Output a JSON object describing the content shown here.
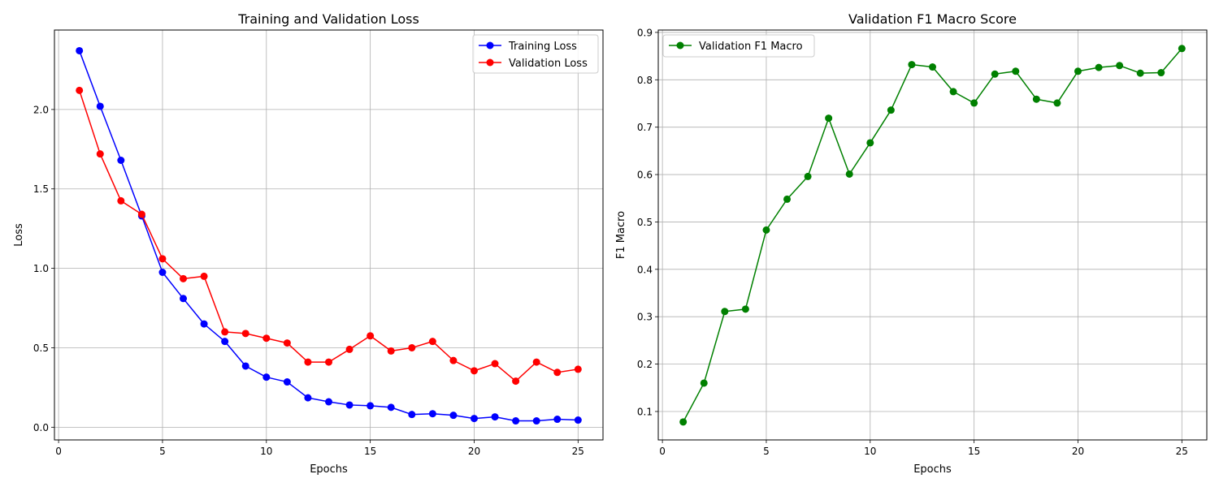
{
  "chart_data": [
    {
      "type": "line",
      "title": "Training and Validation Loss",
      "xlabel": "Epochs",
      "ylabel": "Loss",
      "xlim": [
        -0.2,
        26.2
      ],
      "ylim": [
        -0.08,
        2.5
      ],
      "grid": true,
      "legend_position": "top-right",
      "x_ticks": [
        0,
        5,
        10,
        15,
        20,
        25
      ],
      "x_tick_labels": [
        "0",
        "5",
        "10",
        "15",
        "20",
        "25"
      ],
      "y_ticks": [
        0.0,
        0.5,
        1.0,
        1.5,
        2.0
      ],
      "y_tick_labels": [
        "0.0",
        "0.5",
        "1.0",
        "1.5",
        "2.0"
      ],
      "x": [
        1,
        2,
        3,
        4,
        5,
        6,
        7,
        8,
        9,
        10,
        11,
        12,
        13,
        14,
        15,
        16,
        17,
        18,
        19,
        20,
        21,
        22,
        23,
        24,
        25
      ],
      "series": [
        {
          "name": "Training Loss",
          "color": "#0000ff",
          "values": [
            2.37,
            2.02,
            1.68,
            1.33,
            0.975,
            0.81,
            0.65,
            0.54,
            0.385,
            0.315,
            0.285,
            0.185,
            0.16,
            0.14,
            0.135,
            0.125,
            0.08,
            0.085,
            0.075,
            0.055,
            0.065,
            0.04,
            0.04,
            0.05,
            0.045
          ]
        },
        {
          "name": "Validation Loss",
          "color": "#ff0000",
          "values": [
            2.12,
            1.72,
            1.425,
            1.34,
            1.06,
            0.935,
            0.95,
            0.6,
            0.59,
            0.56,
            0.53,
            0.41,
            0.41,
            0.49,
            0.575,
            0.48,
            0.5,
            0.54,
            0.42,
            0.355,
            0.4,
            0.29,
            0.41,
            0.345,
            0.365
          ]
        }
      ]
    },
    {
      "type": "line",
      "title": "Validation F1 Macro Score",
      "xlabel": "Epochs",
      "ylabel": "F1 Macro",
      "xlim": [
        -0.2,
        26.2
      ],
      "ylim": [
        0.04,
        0.905
      ],
      "grid": true,
      "legend_position": "top-left",
      "x_ticks": [
        0,
        5,
        10,
        15,
        20,
        25
      ],
      "x_tick_labels": [
        "0",
        "5",
        "10",
        "15",
        "20",
        "25"
      ],
      "y_ticks": [
        0.1,
        0.2,
        0.3,
        0.4,
        0.5,
        0.6,
        0.7,
        0.8,
        0.9
      ],
      "y_tick_labels": [
        "0.1",
        "0.2",
        "0.3",
        "0.4",
        "0.5",
        "0.6",
        "0.7",
        "0.8",
        "0.9"
      ],
      "x": [
        1,
        2,
        3,
        4,
        5,
        6,
        7,
        8,
        9,
        10,
        11,
        12,
        13,
        14,
        15,
        16,
        17,
        18,
        19,
        20,
        21,
        22,
        23,
        24,
        25
      ],
      "series": [
        {
          "name": "Validation F1 Macro",
          "color": "#008000",
          "values": [
            0.078,
            0.16,
            0.311,
            0.316,
            0.483,
            0.548,
            0.596,
            0.719,
            0.601,
            0.667,
            0.736,
            0.832,
            0.827,
            0.775,
            0.751,
            0.812,
            0.818,
            0.759,
            0.751,
            0.818,
            0.826,
            0.83,
            0.814,
            0.815,
            0.866
          ]
        }
      ]
    }
  ]
}
